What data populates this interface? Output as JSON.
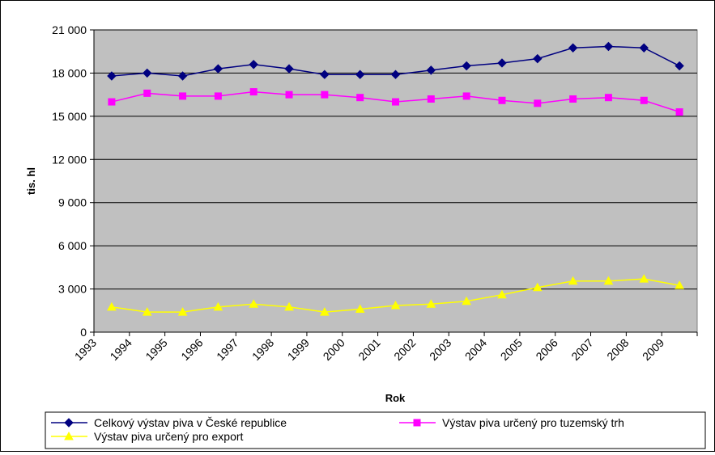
{
  "chart_data": {
    "type": "line",
    "title": "",
    "xlabel": "Rok",
    "ylabel": "tis. hl",
    "ylim": [
      0,
      21000
    ],
    "yticks": [
      0,
      3000,
      6000,
      9000,
      12000,
      15000,
      18000,
      21000
    ],
    "ytick_labels": [
      "0",
      "3 000",
      "6 000",
      "9 000",
      "12 000",
      "15 000",
      "18 000",
      "21 000"
    ],
    "categories": [
      "1993",
      "1994",
      "1995",
      "1996",
      "1997",
      "1998",
      "1999",
      "2000",
      "2001",
      "2002",
      "2003",
      "2004",
      "2005",
      "2006",
      "2007",
      "2008",
      "2009"
    ],
    "grid": true,
    "legend_position": "bottom",
    "series": [
      {
        "name": "Celkový výstav piva v České republice",
        "color": "#000080",
        "marker": "diamond",
        "values": [
          17800,
          18000,
          17800,
          18300,
          18600,
          18300,
          17900,
          17900,
          17900,
          18200,
          18500,
          18700,
          19000,
          19750,
          19850,
          19750,
          18500
        ]
      },
      {
        "name": "Výstav piva určený pro tuzemský trh",
        "color": "#FF00FF",
        "marker": "square",
        "values": [
          16000,
          16600,
          16400,
          16400,
          16700,
          16500,
          16500,
          16300,
          16000,
          16200,
          16400,
          16100,
          15900,
          16200,
          16300,
          16100,
          15300
        ]
      },
      {
        "name": "Výstav piva určený pro export",
        "color": "#FFFF00",
        "marker": "triangle",
        "values": [
          1750,
          1400,
          1400,
          1750,
          1950,
          1750,
          1400,
          1600,
          1850,
          1950,
          2150,
          2600,
          3100,
          3550,
          3550,
          3700,
          3250
        ]
      }
    ]
  }
}
